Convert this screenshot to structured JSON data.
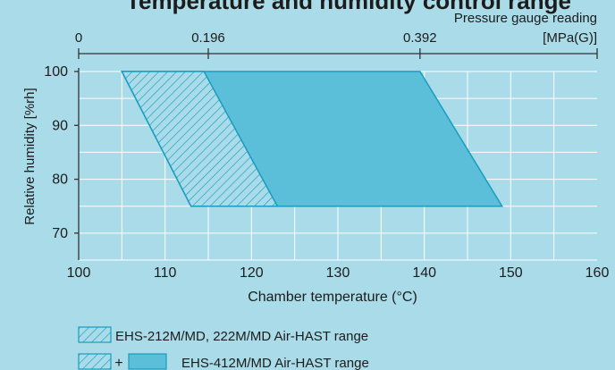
{
  "colors": {
    "background": "#a9dbe8",
    "region_fill": "#5bbfd9",
    "region_stroke": "#1a9cc1",
    "hatch": "#1a9cc1",
    "grid": "#ffffff",
    "text": "#1c1c1c"
  },
  "chart_data": {
    "type": "area",
    "title": "Temperature and humidity control range",
    "xlabel": "Chamber temperature (°C)",
    "ylabel": "Relative humidity [%rh]",
    "xlim": [
      100,
      160
    ],
    "ylim": [
      65,
      100
    ],
    "x_ticks": [
      "100",
      "110",
      "120",
      "130",
      "140",
      "150",
      "160"
    ],
    "x_tick_values": [
      100,
      110,
      120,
      130,
      140,
      150,
      160
    ],
    "y_ticks": [
      "70",
      "80",
      "90",
      "100"
    ],
    "y_tick_values": [
      70,
      80,
      90,
      100
    ],
    "grid": true,
    "top_axis": {
      "label_line1": "Pressure gauge reading",
      "label_line2": "[MPa(G)]",
      "ticks": [
        "0",
        "0.196",
        "0.392"
      ],
      "tick_temperatures": [
        100,
        115,
        139.5
      ]
    },
    "series": [
      {
        "name": "EHS-212M/MD, 222M/MD Air-HAST range",
        "style": "hatched",
        "polygon": [
          [
            105,
            100
          ],
          [
            114.5,
            100
          ],
          [
            123,
            75
          ],
          [
            113,
            75
          ]
        ]
      },
      {
        "name": "EHS-412M/MD Air-HAST range",
        "style": "hatched + filled",
        "polygon": [
          [
            105,
            100
          ],
          [
            139.5,
            100
          ],
          [
            149,
            75
          ],
          [
            113,
            75
          ]
        ]
      }
    ],
    "legend": {
      "placement": "bottom-left",
      "items": [
        {
          "label": "EHS-212M/MD, 222M/MD Air-HAST range",
          "symbols": [
            "hatched"
          ]
        },
        {
          "label": "EHS-412M/MD Air-HAST range",
          "symbols": [
            "hatched",
            "filled"
          ],
          "joiner": "+"
        }
      ]
    }
  }
}
